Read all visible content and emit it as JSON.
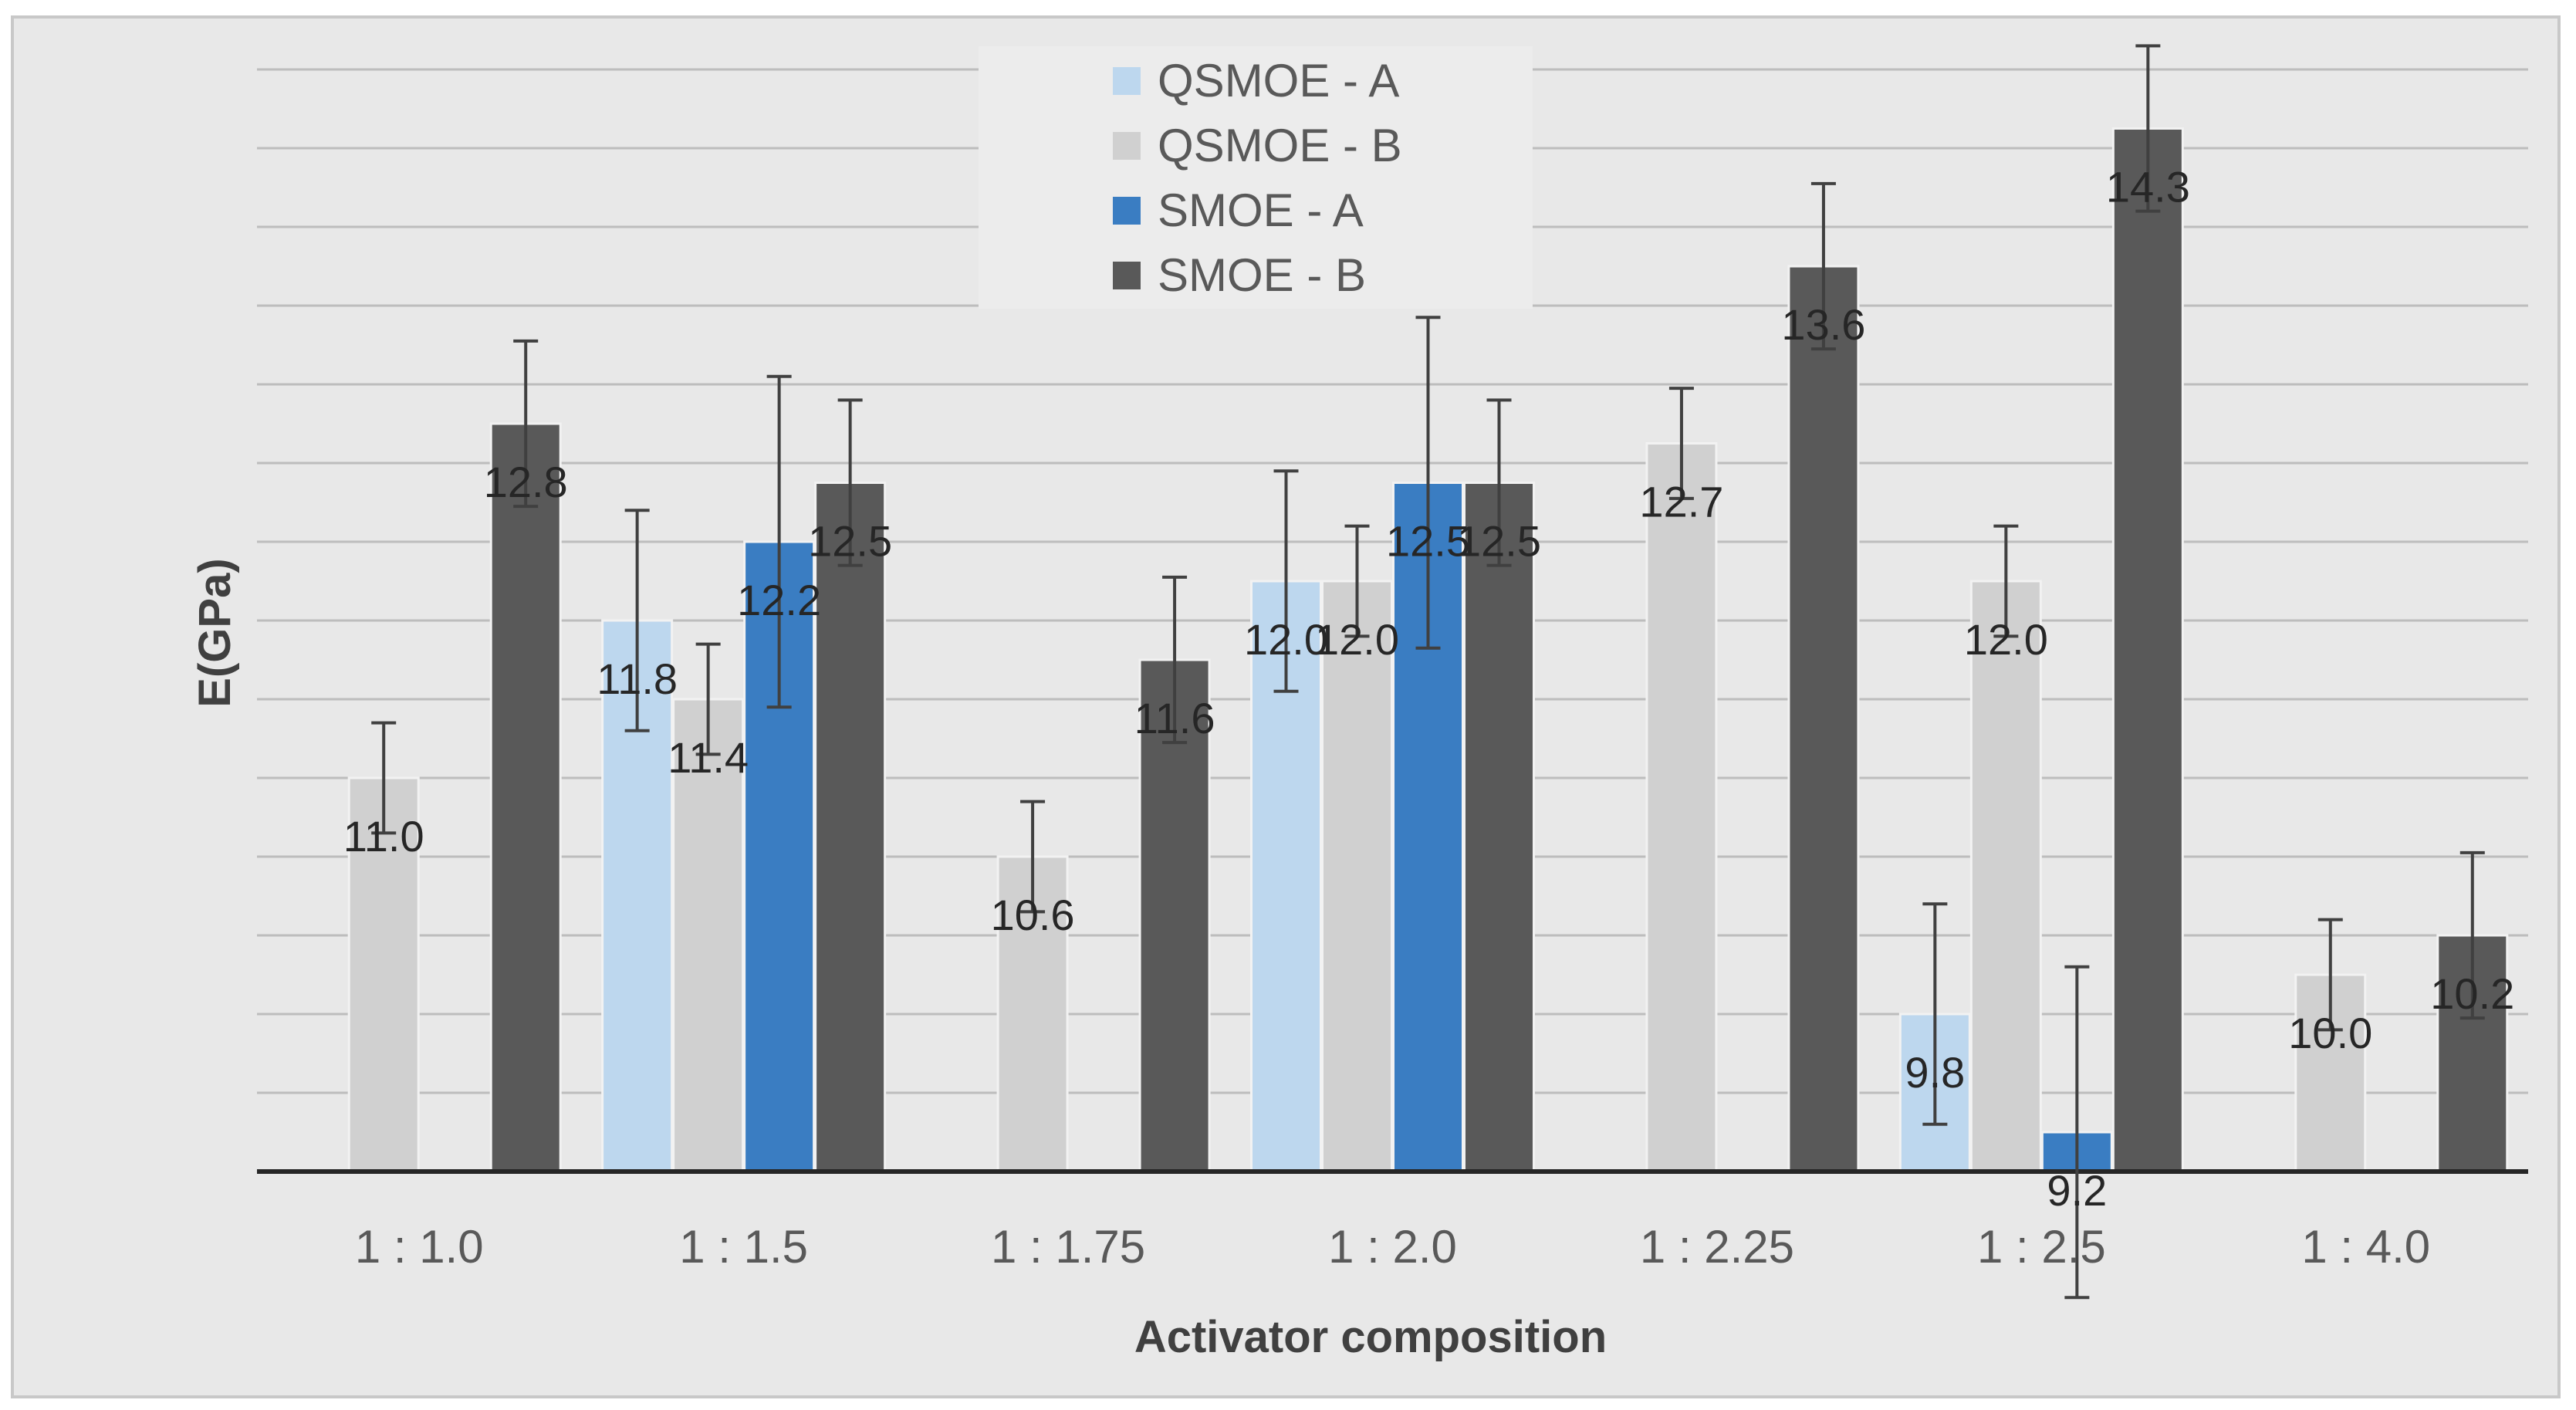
{
  "chart_data": {
    "type": "bar",
    "title": "",
    "xlabel": "Activator composition",
    "ylabel": "E(GPa)",
    "ylim": [
      9.0,
      14.6
    ],
    "ytick_step": 0.4,
    "y_tick_labels_visible": false,
    "grid": true,
    "legend_position": "top-center",
    "categories": [
      "1 : 1.0",
      "1 : 1.5",
      "1 : 1.75",
      "1 : 2.0",
      "1 : 2.25",
      "1 : 2.5",
      "1 : 4.0"
    ],
    "series": [
      {
        "name": "QSMOE - A",
        "color": "#bdd7ee",
        "values": [
          null,
          11.8,
          null,
          12.0,
          null,
          9.8,
          null
        ],
        "labels": [
          "",
          "11.8",
          "",
          "12.0",
          "",
          "9.8",
          ""
        ],
        "error": [
          null,
          0.56,
          null,
          0.56,
          null,
          0.56,
          null
        ]
      },
      {
        "name": "QSMOE - B",
        "color": "#d0d0d0",
        "values": [
          11.0,
          11.4,
          10.6,
          12.0,
          12.7,
          12.0,
          10.0
        ],
        "labels": [
          "11.0",
          "11.4",
          "10.6",
          "12.0",
          "12.7",
          "12.0",
          "10.0"
        ],
        "error": [
          0.28,
          0.28,
          0.28,
          0.28,
          0.28,
          0.28,
          0.28
        ]
      },
      {
        "name": "SMOE - A",
        "color": "#3a7dc2",
        "values": [
          null,
          12.2,
          null,
          12.5,
          null,
          9.2,
          null
        ],
        "labels": [
          "",
          "12.2",
          "",
          "12.5",
          "",
          "9.2",
          ""
        ],
        "error": [
          null,
          0.84,
          null,
          0.84,
          null,
          0.84,
          null
        ]
      },
      {
        "name": "SMOE - B",
        "color": "#595959",
        "values": [
          12.8,
          12.5,
          11.6,
          12.5,
          13.6,
          14.3,
          10.2
        ],
        "labels": [
          "12.8",
          "12.5",
          "11.6",
          "12.5",
          "13.6",
          "14.3",
          "10.2"
        ],
        "error": [
          0.42,
          0.42,
          0.42,
          0.42,
          0.42,
          0.42,
          0.42
        ]
      }
    ]
  }
}
